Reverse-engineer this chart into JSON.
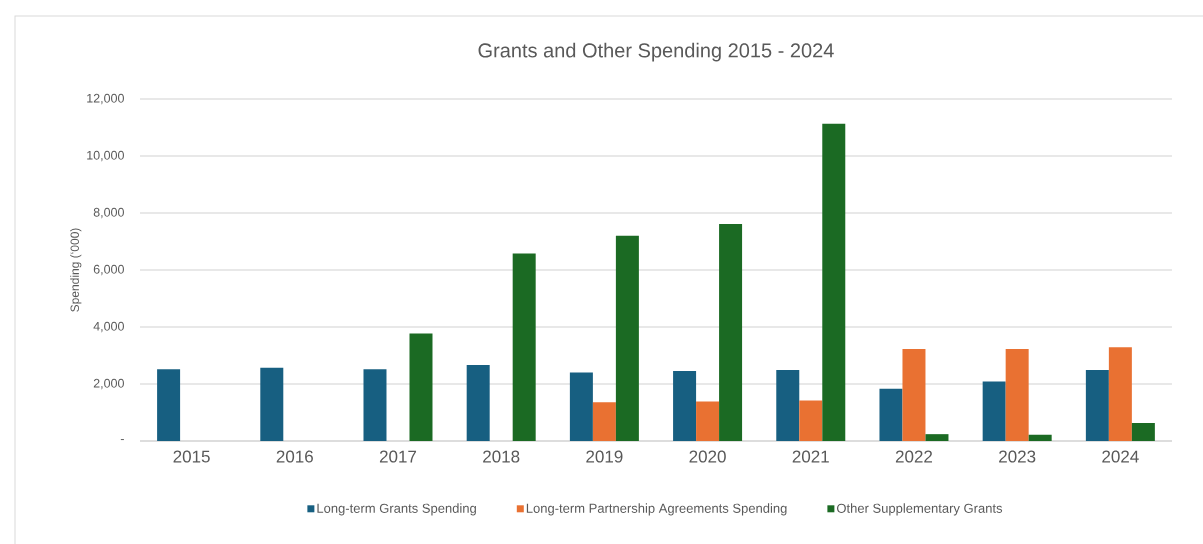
{
  "chart_data": {
    "type": "bar",
    "title": "Grants and Other Spending 2015 - 2024",
    "ylabel": "Spending (‘000)",
    "categories": [
      "2015",
      "2016",
      "2017",
      "2018",
      "2019",
      "2020",
      "2021",
      "2022",
      "2023",
      "2024"
    ],
    "series": [
      {
        "name": "Long-term Grants Spending",
        "color": "#175f81",
        "values": [
          2520,
          2570,
          2520,
          2670,
          2400,
          2460,
          2490,
          1830,
          2090,
          2490
        ]
      },
      {
        "name": "Long-term Partnership Agreements Spending",
        "color": "#e97132",
        "values": [
          null,
          null,
          null,
          null,
          1360,
          1390,
          1420,
          3230,
          3230,
          3290
        ]
      },
      {
        "name": "Other Supplementary Grants",
        "color": "#1b6a23",
        "values": [
          null,
          null,
          3770,
          6580,
          7200,
          7610,
          11140,
          240,
          220,
          630
        ]
      }
    ],
    "ylim": [
      0,
      12000
    ],
    "yticks": [
      {
        "value": 0,
        "label": "-"
      },
      {
        "value": 2000,
        "label": "2,000"
      },
      {
        "value": 4000,
        "label": "4,000"
      },
      {
        "value": 6000,
        "label": "6,000"
      },
      {
        "value": 8000,
        "label": "8,000"
      },
      {
        "value": 10000,
        "label": "10,000"
      },
      {
        "value": 12000,
        "label": "12,000"
      }
    ],
    "grid": "y",
    "legend": "bottom"
  }
}
